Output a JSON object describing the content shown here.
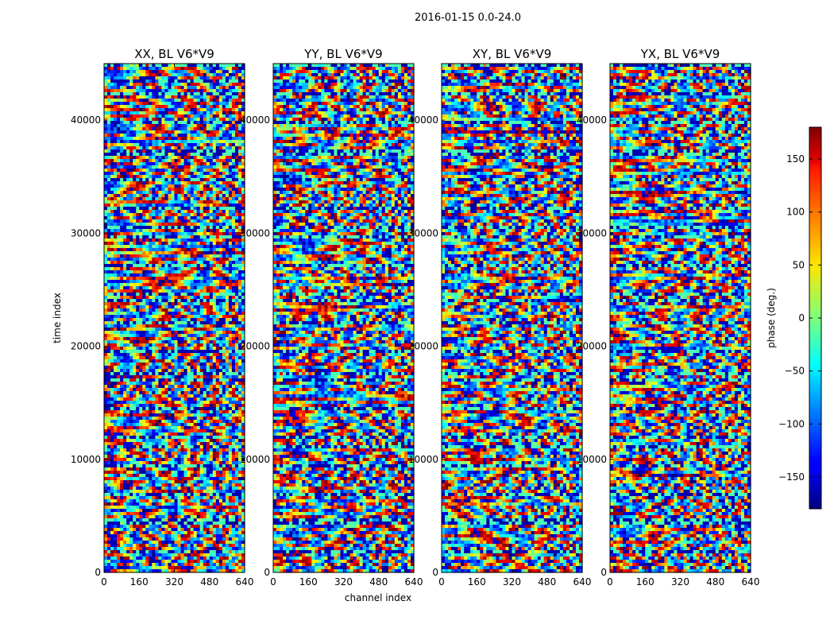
{
  "chart_data": {
    "type": "heatmap",
    "suptitle": "2016-01-15 0.0-24.0",
    "xlabel": "channel index",
    "ylabel": "time index",
    "xlim": [
      0,
      640
    ],
    "ylim": [
      0,
      45000
    ],
    "xticks": [
      "0",
      "160",
      "320",
      "480",
      "640"
    ],
    "yticks": [
      "0",
      "10000",
      "20000",
      "30000",
      "40000"
    ],
    "colormap": "jet",
    "panels": [
      {
        "title": "XX, BL V6*V9"
      },
      {
        "title": "YY, BL V6*V9"
      },
      {
        "title": "XY, BL V6*V9"
      },
      {
        "title": "YX, BL V6*V9"
      }
    ],
    "colorbar": {
      "label": "phase (deg.)",
      "range": [
        -180,
        180
      ],
      "ticks": [
        "150",
        "100",
        "50",
        "0",
        "−50",
        "−100",
        "−150"
      ]
    }
  }
}
